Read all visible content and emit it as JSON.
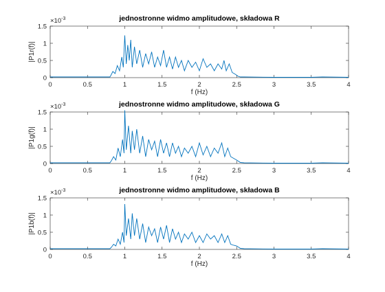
{
  "chart_data": [
    {
      "type": "line",
      "title": "jednostronne widmo amplitudowe, składowa R",
      "xlabel": "f (Hz)",
      "ylabel": "|P1r(f)|",
      "xlim": [
        0,
        4
      ],
      "ylim": [
        0,
        0.0015
      ],
      "xticks": [
        0,
        0.5,
        1,
        1.5,
        2,
        2.5,
        3,
        3.5,
        4
      ],
      "xtick_labels": [
        "0",
        "0.5",
        "1",
        "1.5",
        "2",
        "2.5",
        "3",
        "3.5",
        "4"
      ],
      "yticks": [
        0,
        0.0005,
        0.001,
        0.0015
      ],
      "ytick_labels": [
        "0",
        "0.5",
        "1",
        "1.5"
      ],
      "y_exponent_label": "×10",
      "y_exponent_power": "-3",
      "grid": false,
      "color": "#0072BD",
      "x": [
        0.0,
        0.8,
        0.81,
        0.84,
        0.87,
        0.9,
        0.93,
        0.96,
        0.98,
        1.0,
        1.02,
        1.04,
        1.06,
        1.08,
        1.1,
        1.13,
        1.16,
        1.2,
        1.24,
        1.28,
        1.32,
        1.36,
        1.4,
        1.44,
        1.48,
        1.52,
        1.56,
        1.6,
        1.64,
        1.68,
        1.72,
        1.76,
        1.8,
        1.85,
        1.9,
        1.95,
        2.0,
        2.05,
        2.1,
        2.15,
        2.2,
        2.25,
        2.3,
        2.33,
        2.36,
        2.4,
        2.44,
        2.48,
        2.52,
        2.55,
        2.6,
        3.0,
        3.5,
        3.65,
        4.0
      ],
      "y": [
        2e-05,
        2e-05,
        5e-05,
        0.00018,
        0.00012,
        0.00035,
        0.0002,
        0.0006,
        0.0003,
        0.00123,
        0.0004,
        0.00095,
        0.0005,
        0.0011,
        0.0003,
        0.0009,
        0.0004,
        0.0008,
        0.0003,
        0.0007,
        0.0004,
        0.00075,
        0.0003,
        0.0006,
        0.00035,
        0.0008,
        0.0003,
        0.0006,
        0.00025,
        0.0006,
        0.0003,
        0.0005,
        0.0002,
        0.0005,
        0.0003,
        0.00045,
        0.0002,
        0.00055,
        0.0003,
        0.0004,
        0.0002,
        0.0004,
        0.00025,
        0.0005,
        0.0002,
        0.0004,
        0.00015,
        0.0001,
        4e-05,
        2e-05,
        2e-05,
        1e-05,
        1e-05,
        2e-05,
        1e-05
      ]
    },
    {
      "type": "line",
      "title": "jednostronne widmo amplitudowe, składowa G",
      "xlabel": "f (Hz)",
      "ylabel": "|P1g(f)|",
      "xlim": [
        0,
        4
      ],
      "ylim": [
        0,
        0.0015
      ],
      "xticks": [
        0,
        0.5,
        1,
        1.5,
        2,
        2.5,
        3,
        3.5,
        4
      ],
      "xtick_labels": [
        "0",
        "0.5",
        "1",
        "1.5",
        "2",
        "2.5",
        "3",
        "3.5",
        "4"
      ],
      "yticks": [
        0,
        0.0005,
        0.001,
        0.0015
      ],
      "ytick_labels": [
        "0",
        "0.5",
        "1",
        "1.5"
      ],
      "y_exponent_label": "×10",
      "y_exponent_power": "-3",
      "grid": false,
      "color": "#0072BD",
      "x": [
        0.0,
        0.8,
        0.82,
        0.85,
        0.88,
        0.91,
        0.94,
        0.97,
        0.99,
        1.0,
        1.02,
        1.05,
        1.08,
        1.1,
        1.13,
        1.16,
        1.2,
        1.24,
        1.28,
        1.32,
        1.36,
        1.4,
        1.44,
        1.48,
        1.52,
        1.56,
        1.6,
        1.64,
        1.68,
        1.72,
        1.76,
        1.8,
        1.85,
        1.9,
        1.95,
        2.0,
        2.05,
        2.1,
        2.15,
        2.2,
        2.25,
        2.3,
        2.34,
        2.38,
        2.42,
        2.46,
        2.5,
        2.55,
        2.6,
        3.0,
        3.5,
        3.65,
        4.0
      ],
      "y": [
        2e-05,
        2e-05,
        8e-05,
        0.0002,
        0.0001,
        0.00045,
        0.0002,
        0.0007,
        0.0003,
        0.00155,
        0.0004,
        0.0011,
        0.0003,
        0.00095,
        0.0004,
        0.001,
        0.0003,
        0.0008,
        0.0002,
        0.0007,
        0.0004,
        0.00065,
        0.0002,
        0.0007,
        0.0003,
        0.0006,
        0.0002,
        0.0006,
        0.0003,
        0.0005,
        0.0002,
        0.00045,
        0.0003,
        0.0005,
        0.0002,
        0.0006,
        0.00025,
        0.0005,
        0.0002,
        0.00045,
        0.0003,
        0.0006,
        0.0002,
        0.00045,
        0.0002,
        0.00015,
        0.0001,
        3e-05,
        2e-05,
        1e-05,
        1e-05,
        2e-05,
        1e-05
      ]
    },
    {
      "type": "line",
      "title": "jednostronne widmo amplitudowe, składowa B",
      "xlabel": "f (Hz)",
      "ylabel": "|P1b(f)|",
      "xlim": [
        0,
        4
      ],
      "ylim": [
        0,
        0.0015
      ],
      "xticks": [
        0,
        0.5,
        1,
        1.5,
        2,
        2.5,
        3,
        3.5,
        4
      ],
      "xtick_labels": [
        "0",
        "0.5",
        "1",
        "1.5",
        "2",
        "2.5",
        "3",
        "3.5",
        "4"
      ],
      "yticks": [
        0,
        0.0005,
        0.001,
        0.0015
      ],
      "ytick_labels": [
        "0",
        "0.5",
        "1",
        "1.5"
      ],
      "y_exponent_label": "×10",
      "y_exponent_power": "-3",
      "grid": false,
      "color": "#0072BD",
      "x": [
        0.0,
        0.8,
        0.82,
        0.85,
        0.88,
        0.91,
        0.94,
        0.97,
        0.99,
        1.0,
        1.02,
        1.05,
        1.08,
        1.1,
        1.13,
        1.16,
        1.2,
        1.24,
        1.28,
        1.32,
        1.36,
        1.4,
        1.44,
        1.48,
        1.52,
        1.56,
        1.6,
        1.64,
        1.68,
        1.72,
        1.76,
        1.8,
        1.85,
        1.9,
        1.95,
        2.0,
        2.05,
        2.1,
        2.15,
        2.2,
        2.25,
        2.3,
        2.34,
        2.38,
        2.42,
        2.46,
        2.5,
        2.55,
        2.6,
        3.0,
        3.5,
        3.65,
        4.0
      ],
      "y": [
        2e-05,
        2e-05,
        6e-05,
        0.00015,
        0.0001,
        0.0003,
        0.00015,
        0.0005,
        0.0002,
        0.00132,
        0.0004,
        0.0009,
        0.0003,
        0.00105,
        0.0004,
        0.0009,
        0.0003,
        0.00075,
        0.0002,
        0.00065,
        0.0004,
        0.0006,
        0.0002,
        0.00065,
        0.0003,
        0.0007,
        0.0002,
        0.0006,
        0.0003,
        0.0005,
        0.0002,
        0.00045,
        0.0003,
        0.0005,
        0.0002,
        0.0004,
        0.0002,
        0.00045,
        0.0003,
        0.0004,
        0.0002,
        0.00045,
        0.0002,
        0.0004,
        0.00015,
        0.00012,
        0.0001,
        3e-05,
        2e-05,
        1e-05,
        1e-05,
        2e-05,
        1e-05
      ]
    }
  ]
}
